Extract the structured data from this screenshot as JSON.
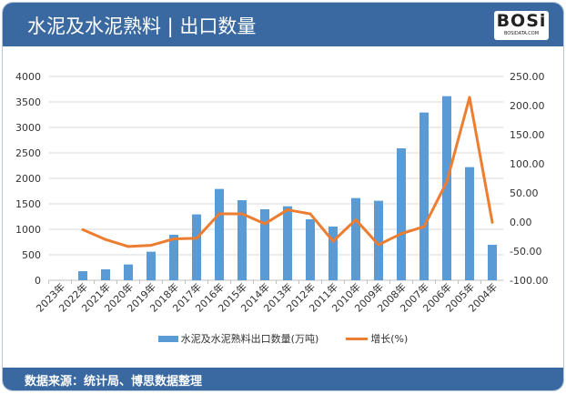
{
  "header": {
    "title": "水泥及水泥熟料 | 出口数量",
    "logo_text": "BOSi",
    "logo_sub": "BOSIDATA.COM"
  },
  "footer": {
    "source": "数据来源：统计局、博思数据整理"
  },
  "colors": {
    "bar": "#5b9bd5",
    "line": "#ed7d31",
    "header": "#3a68a0"
  },
  "chart_data": {
    "type": "bar+line",
    "categories": [
      "2023年",
      "2022年",
      "2021年",
      "2020年",
      "2019年",
      "2018年",
      "2017年",
      "2016年",
      "2015年",
      "2014年",
      "2013年",
      "2012年",
      "2011年",
      "2010年",
      "2009年",
      "2008年",
      "2007年",
      "2006年",
      "2005年",
      "2004年"
    ],
    "series": [
      {
        "name": "水泥及水泥熟料出口数量(万吨)",
        "type": "bar",
        "axis": "left",
        "values": [
          null,
          178,
          214,
          310,
          560,
          893,
          1292,
          1792,
          1571,
          1393,
          1452,
          1196,
          1054,
          1613,
          1560,
          2589,
          3292,
          3613,
          2220,
          696
        ]
      },
      {
        "name": "增长(%)",
        "type": "line",
        "axis": "right",
        "values": [
          null,
          -13,
          -30,
          -42,
          -40,
          -29,
          -28,
          14,
          14,
          -3,
          21,
          14,
          -33,
          4,
          -39,
          -20,
          -8,
          69,
          214,
          -0.5
        ]
      }
    ],
    "left_axis": {
      "range": [
        0,
        4000
      ],
      "ticks": [
        "0",
        "500",
        "1000",
        "1500",
        "2000",
        "2500",
        "3000",
        "3500",
        "4000"
      ]
    },
    "right_axis": {
      "range": [
        -100,
        250
      ],
      "ticks": [
        "-100.00",
        "-50.00",
        "0.00",
        "50.00",
        "100.00",
        "150.00",
        "200.00",
        "250.00"
      ]
    },
    "grid": true,
    "legend": "bottom"
  }
}
